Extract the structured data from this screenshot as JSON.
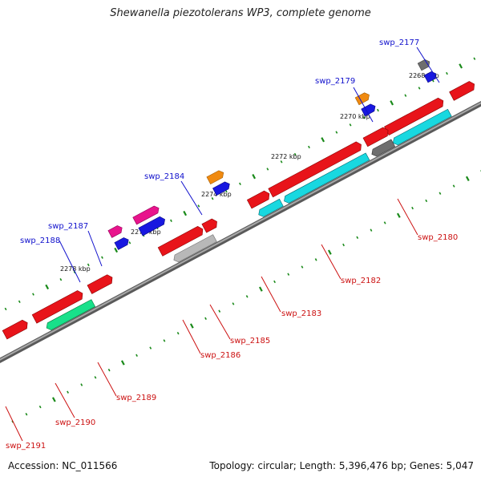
{
  "title": "Shewanella piezotolerans WP3, complete genome",
  "footer": {
    "accession": "Accession: NC_011566",
    "summary": "Topology: circular; Length: 5,396,476 bp; Genes: 5,047"
  },
  "ticks": [
    "2268 kbp",
    "2270 kbp",
    "2272 kbp",
    "2274 kbp",
    "2276 kbp",
    "2278 kbp"
  ],
  "genes": [
    {
      "label": "swp_2177",
      "color": "#1010cc"
    },
    {
      "label": "swp_2179",
      "color": "#1010cc"
    },
    {
      "label": "swp_2184",
      "color": "#1010cc"
    },
    {
      "label": "swp_2187",
      "color": "#1010cc"
    },
    {
      "label": "swp_2188",
      "color": "#1010cc"
    },
    {
      "label": "swp_2180",
      "color": "#cc1111"
    },
    {
      "label": "swp_2182",
      "color": "#cc1111"
    },
    {
      "label": "swp_2183",
      "color": "#cc1111"
    },
    {
      "label": "swp_2185",
      "color": "#cc1111"
    },
    {
      "label": "swp_2186",
      "color": "#cc1111"
    },
    {
      "label": "swp_2189",
      "color": "#cc1111"
    },
    {
      "label": "swp_2190",
      "color": "#cc1111"
    },
    {
      "label": "swp_2191",
      "color": "#cc1111"
    }
  ],
  "colors": {
    "forward_cds": "#e8141a",
    "reverse_cds": "#18d8e0",
    "rna": "#1818e0",
    "gray_gene": "#6e6e6e",
    "orange_gene": "#f08a10",
    "magenta_gene": "#e8148c",
    "green_gene": "#18e08a",
    "tick_green": "#1a8a1a",
    "backbone": "#8a8a8a"
  }
}
